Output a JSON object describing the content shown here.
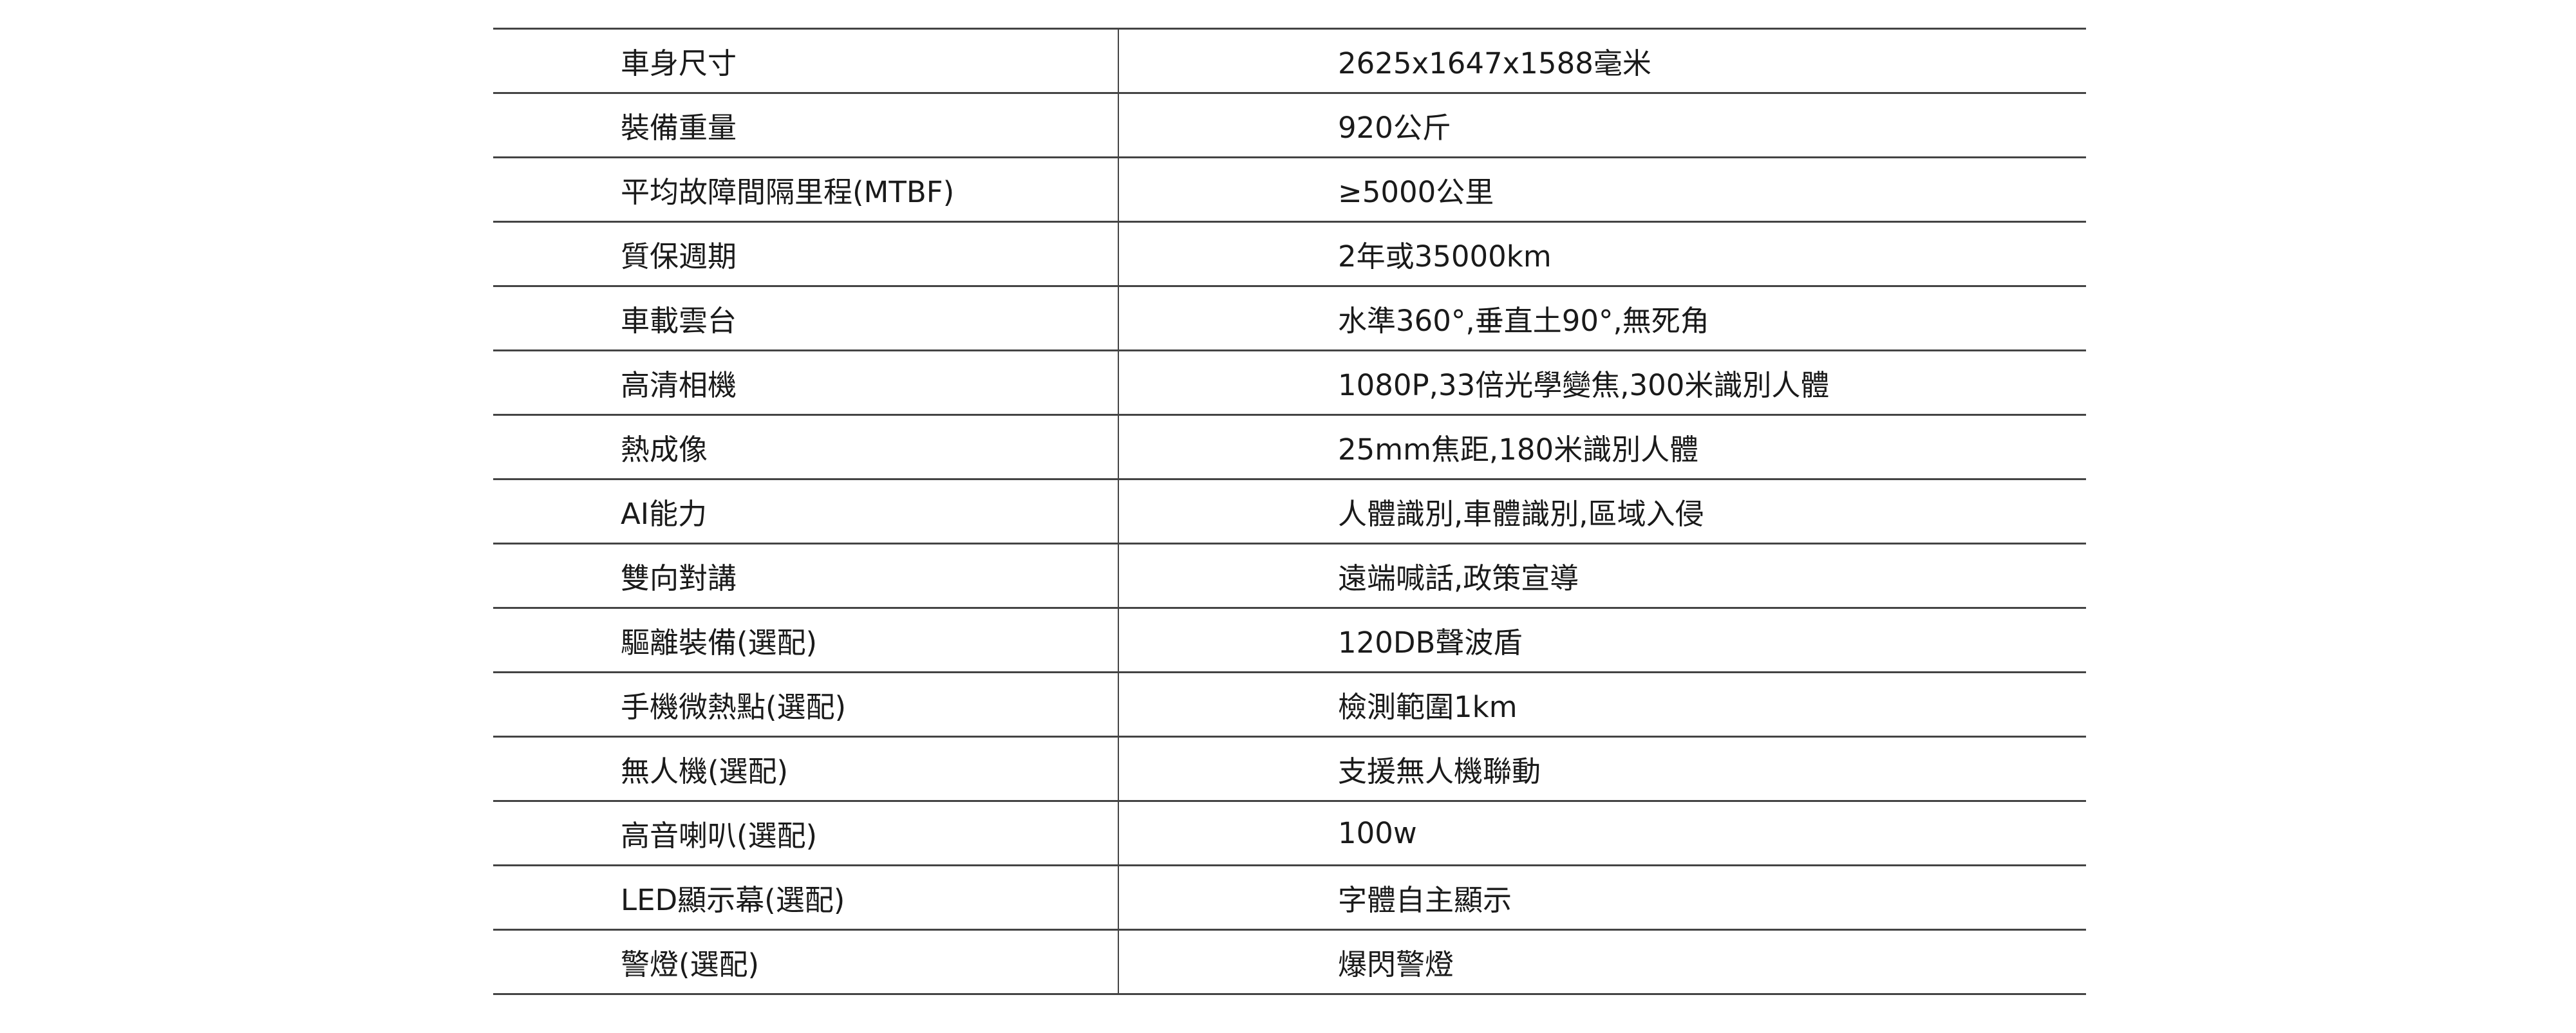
{
  "specs": [
    {
      "label": "車身尺寸",
      "value": "2625x1647x1588毫米"
    },
    {
      "label": "裝備重量",
      "value": "920公斤"
    },
    {
      "label": "平均故障間隔里程(MTBF)",
      "value": " ≥5000公里"
    },
    {
      "label": "質保週期",
      "value": "2年或35000km"
    },
    {
      "label": "車載雲台",
      "value": "水準360°,垂直土90°,無死角"
    },
    {
      "label": "高清相機",
      "value": "1080P,33倍光學變焦,300米識別人體"
    },
    {
      "label": "熱成像",
      "value": "25mm焦距,180米識別人體"
    },
    {
      "label": "AI能力",
      "value": "人體識別,車體識別,區域入侵"
    },
    {
      "label": "雙向對講",
      "value": " 遠端喊話,政策宣導"
    },
    {
      "label": "驅離裝備(選配)",
      "value": " 120DB聲波盾"
    },
    {
      "label": "手機微熱點(選配)",
      "value": "檢測範圍1km"
    },
    {
      "label": "無人機(選配)",
      "value": "支援無人機聯動"
    },
    {
      "label": "高音喇叭(選配)",
      "value": "100w"
    },
    {
      "label": "LED顯示幕(選配)",
      "value": "字體自主顯示"
    },
    {
      "label": "警燈(選配)",
      "value": "爆閃警燈"
    }
  ]
}
